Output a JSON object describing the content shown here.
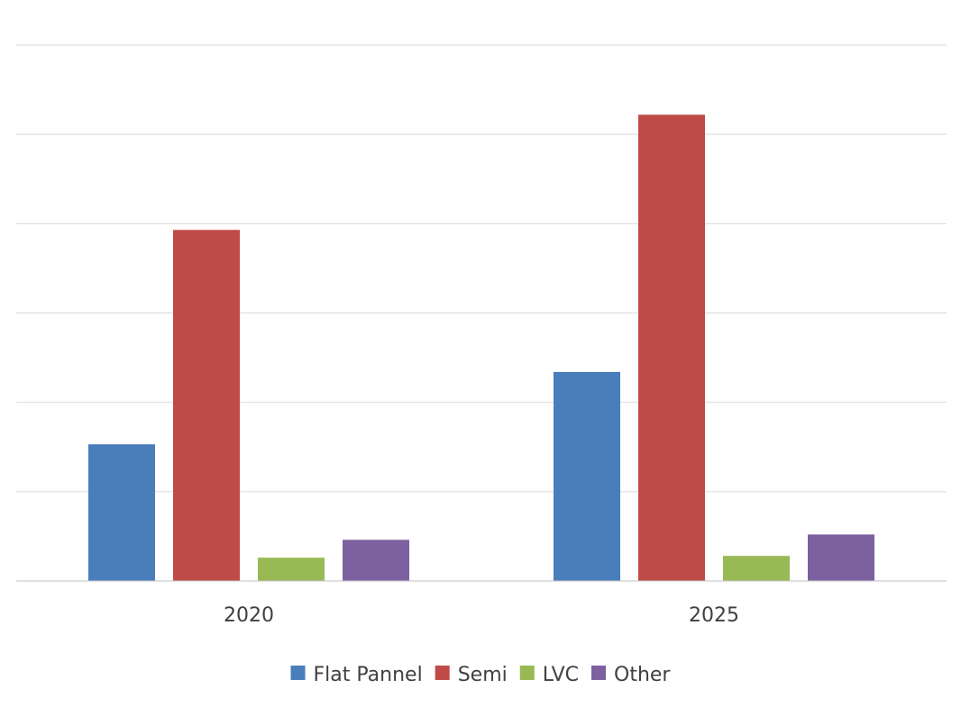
{
  "chart_data": {
    "type": "bar",
    "categories": [
      "2020",
      "2025"
    ],
    "series": [
      {
        "name": "Flat Pannel",
        "color": "#4a7ebb",
        "values": [
          1.53,
          2.34
        ]
      },
      {
        "name": "Semi",
        "color": "#be4b48",
        "values": [
          3.93,
          5.22
        ]
      },
      {
        "name": "LVC",
        "color": "#98b954",
        "values": [
          0.26,
          0.28
        ]
      },
      {
        "name": "Other",
        "color": "#7d60a0",
        "values": [
          0.46,
          0.52
        ]
      }
    ],
    "ylim": [
      0,
      6
    ],
    "gridlines": true,
    "y_tick_labels_shown": false,
    "legend_position": "bottom",
    "gridline_color": "#d9d9d9",
    "axis_color": "#bfbfbf"
  }
}
